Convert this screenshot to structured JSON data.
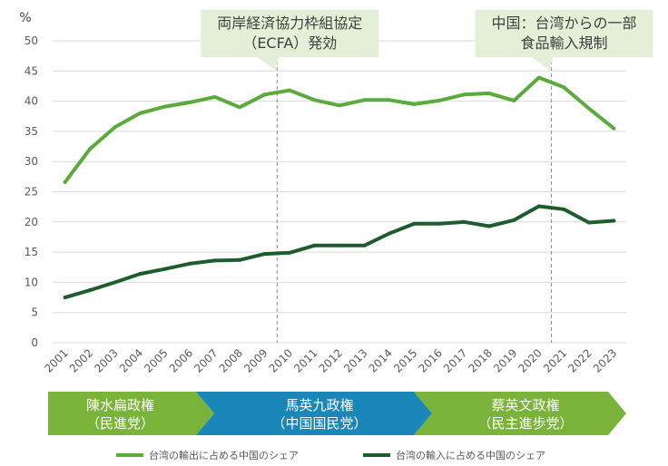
{
  "chart_data": {
    "type": "line",
    "ylabel": "%",
    "ylim": [
      0,
      50
    ],
    "yticks": [
      0,
      5,
      10,
      15,
      20,
      25,
      30,
      35,
      40,
      45,
      50
    ],
    "grid": true,
    "legend_position": "bottom",
    "x": [
      "2001",
      "2002",
      "2003",
      "2004",
      "2005",
      "2006",
      "2007",
      "2008",
      "2009",
      "2010",
      "2011",
      "2012",
      "2013",
      "2014",
      "2015",
      "2016",
      "2017",
      "2018",
      "2019",
      "2020",
      "2021",
      "2022",
      "2023"
    ],
    "series": [
      {
        "name": "台湾の輸出に占める中国のシェア",
        "color": "#5aaa3c",
        "values": [
          26.6,
          32.1,
          35.7,
          38.0,
          39.1,
          39.8,
          40.7,
          39.0,
          41.1,
          41.8,
          40.2,
          39.3,
          40.2,
          40.2,
          39.5,
          40.1,
          41.1,
          41.3,
          40.1,
          43.9,
          42.3,
          38.8,
          35.5
        ]
      },
      {
        "name": "台湾の輸入に占める中国のシェア",
        "color": "#1e5c2e",
        "values": [
          7.5,
          8.7,
          10.0,
          11.4,
          12.2,
          13.1,
          13.6,
          13.7,
          14.7,
          14.9,
          16.1,
          16.1,
          16.1,
          18.1,
          19.7,
          19.7,
          20.0,
          19.3,
          20.3,
          22.6,
          22.1,
          19.9,
          20.2
        ]
      }
    ],
    "annotations": [
      {
        "year": "2010",
        "lines": [
          "両岸経済協力枠組協定",
          "（ECFA）発効"
        ]
      },
      {
        "year": "2021",
        "lines": [
          "中国：台湾からの一部",
          "食品輸入規制"
        ]
      }
    ],
    "eras": [
      {
        "lines": [
          "陳水扁政権",
          "（民進党）"
        ],
        "color": "#7ab33a",
        "from": "2001",
        "to": "2008"
      },
      {
        "lines": [
          "馬英九政権",
          "（中国国民党）"
        ],
        "color": "#1a87b8",
        "from": "2008",
        "to": "2016"
      },
      {
        "lines": [
          "蔡英文政権",
          "（民主進歩党）"
        ],
        "color": "#7ab33a",
        "from": "2016",
        "to": "2023"
      }
    ]
  }
}
